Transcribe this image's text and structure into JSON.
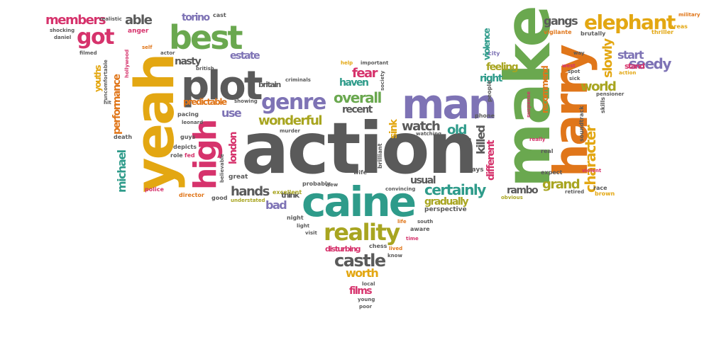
{
  "colors": {
    "gray": "#5a5a5a",
    "green": "#6aa84f",
    "teal": "#2e9b8a",
    "orange": "#e0761a",
    "yellow": "#e3a712",
    "purple": "#7e73b5",
    "pink": "#d6336c",
    "olive": "#a8a520"
  },
  "words": [
    "action",
    "caine",
    "make",
    "harry",
    "yeah",
    "man",
    "plot",
    "best",
    "high",
    "reality",
    "got",
    "genre",
    "elephant",
    "castle",
    "certainly",
    "character",
    "members",
    "able",
    "overall",
    "seedy",
    "wonderful",
    "watch",
    "old",
    "hands",
    "fear",
    "slowly",
    "world",
    "grand",
    "gangs",
    "start",
    "nasty",
    "estate",
    "feeling",
    "use",
    "recent",
    "worth",
    "killed",
    "different",
    "michael",
    "performance",
    "london",
    "youths",
    "films",
    "torino",
    "bad",
    "rambo",
    "gradually",
    "usual",
    "haven",
    "right",
    "stand",
    "sink",
    "recommend",
    "violence",
    "predictable",
    "britain",
    "think",
    "disturbing",
    "death",
    "police",
    "director",
    "good",
    "great",
    "excellent",
    "understated",
    "perspective",
    "night",
    "light",
    "visit",
    "chess",
    "lived",
    "know",
    "time",
    "aware",
    "south",
    "life",
    "local",
    "young",
    "poor",
    "pacing",
    "leonard",
    "guys",
    "depicts",
    "role",
    "fed",
    "murder",
    "probably",
    "view",
    "convincing",
    "wife",
    "brilliant",
    "plays",
    "phone",
    "watching",
    "gran",
    "ism",
    "city",
    "people",
    "suspense",
    "soundtrack",
    "skills",
    "vigilante",
    "brutally",
    "way",
    "spot",
    "sick",
    "action",
    "pensioner",
    "real",
    "expect",
    "violent",
    "race",
    "brown",
    "retired",
    "obvious",
    "really",
    "thriller",
    "areas",
    "military",
    "cast",
    "anger",
    "realistic",
    "shocking",
    "daniel",
    "filmed",
    "uncomfortable",
    "hollywood",
    "actor",
    "british",
    "criminals",
    "society",
    "help",
    "important",
    "believable",
    "showing",
    "self",
    "west",
    "hit"
  ]
}
